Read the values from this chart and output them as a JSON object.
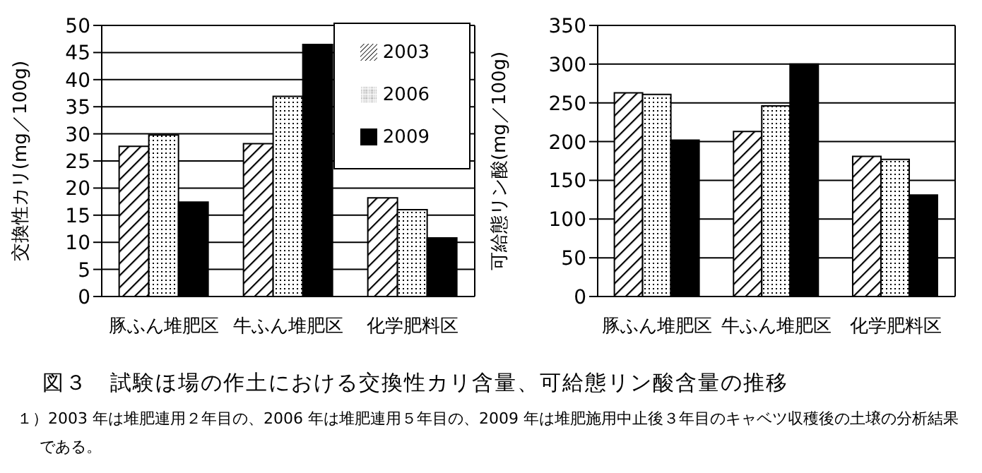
{
  "chart_data": [
    {
      "type": "bar",
      "ylabel": "交換性カリ(mg／100g)",
      "title": "図３　試験ほ場の作土における交換性カリ含量、可給態リン酸含量の推移",
      "annotations": [
        "１）2003 年は堆肥連用２年目の、2006 年は堆肥連用５年目の、2009 年は堆肥施用中止後３年目のキャベツ収穫後の土壌の分析結果である。"
      ],
      "categories": [
        "豚ふん堆肥区",
        "牛ふん堆肥区",
        "化学肥料区"
      ],
      "series": [
        {
          "name": "2003",
          "color": "#000000",
          "values": [
            27.7,
            28.2,
            18.2
          ]
        },
        {
          "name": "2006",
          "color": "#000000",
          "values": [
            29.8,
            36.9,
            16.0
          ]
        },
        {
          "name": "2009",
          "color": "#000000",
          "values": [
            17.4,
            46.5,
            10.8
          ]
        }
      ],
      "ylim": [
        0,
        50
      ],
      "yticks": [
        0,
        5,
        10,
        15,
        20,
        25,
        30,
        35,
        40,
        45,
        50
      ],
      "grid": "y",
      "legend": "top right"
    },
    {
      "type": "bar",
      "ylabel": "可給態リン酸(mg／100g)",
      "categories": [
        "豚ふん堆肥区",
        "牛ふん堆肥区",
        "化学肥料区"
      ],
      "series": [
        {
          "color": "#000000",
          "values": [
            263,
            213,
            181
          ]
        },
        {
          "color": "#000000",
          "values": [
            261,
            246,
            177
          ]
        },
        {
          "color": "#000000",
          "values": [
            202,
            300,
            131
          ]
        }
      ],
      "ylim": [
        0,
        350
      ],
      "yticks": [
        0,
        50,
        100,
        150,
        200,
        250,
        300,
        350
      ],
      "grid": "y"
    }
  ]
}
